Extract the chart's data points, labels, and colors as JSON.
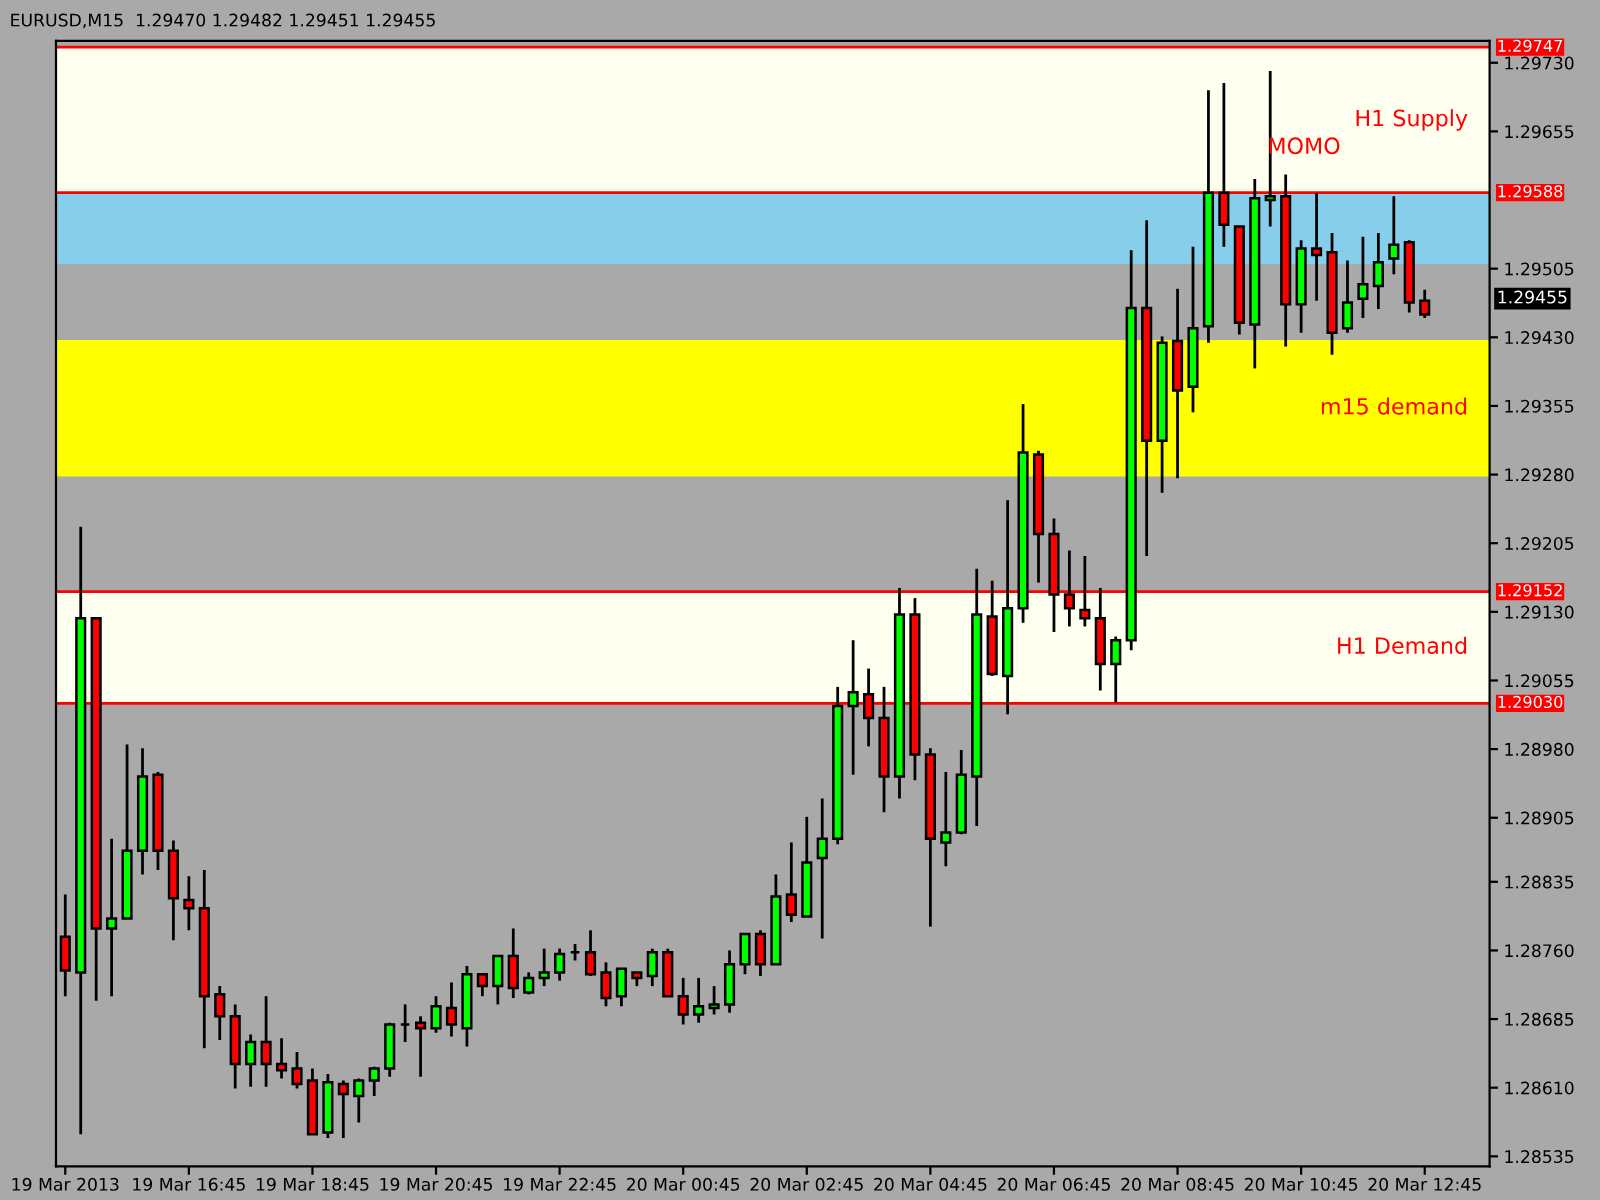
{
  "chart_data": {
    "type": "candlestick",
    "title": "EURUSD,M15  1.29470 1.29482 1.29451 1.29455",
    "categories": [
      "19 Mar 2013",
      null,
      null,
      null,
      null,
      null,
      null,
      null,
      "19 Mar 16:45",
      null,
      null,
      null,
      null,
      null,
      null,
      null,
      "19 Mar 18:45",
      null,
      null,
      null,
      null,
      null,
      null,
      null,
      "19 Mar 20:45",
      null,
      null,
      null,
      null,
      null,
      null,
      null,
      "19 Mar 22:45",
      null,
      null,
      null,
      null,
      null,
      null,
      null,
      "20 Mar 00:45",
      null,
      null,
      null,
      null,
      null,
      null,
      null,
      "20 Mar 02:45",
      null,
      null,
      null,
      null,
      null,
      null,
      null,
      "20 Mar 04:45",
      null,
      null,
      null,
      null,
      null,
      null,
      null,
      "20 Mar 06:45",
      null,
      null,
      null,
      null,
      null,
      null,
      null,
      "20 Mar 08:45",
      null,
      null,
      null,
      null,
      null,
      null,
      null,
      "20 Mar 10:45",
      null,
      null,
      null,
      null,
      null,
      null,
      null,
      "20 Mar 12:45"
    ],
    "ohlc": [
      [
        1.28775,
        1.28821,
        1.2871,
        1.28738
      ],
      [
        1.28736,
        1.29223,
        1.28559,
        1.29123
      ],
      [
        1.29123,
        1.29123,
        1.28705,
        1.28784
      ],
      [
        1.28784,
        1.28882,
        1.2871,
        1.28795
      ],
      [
        1.28795,
        1.28985,
        1.28795,
        1.28869
      ],
      [
        1.28869,
        1.28981,
        1.28843,
        1.2895
      ],
      [
        1.28952,
        1.28955,
        1.28848,
        1.28869
      ],
      [
        1.28869,
        1.2888,
        1.28771,
        1.28817
      ],
      [
        1.28815,
        1.28841,
        1.28782,
        1.28806
      ],
      [
        1.28806,
        1.28848,
        1.28653,
        1.2871
      ],
      [
        1.28712,
        1.28721,
        1.28662,
        1.28688
      ],
      [
        1.28688,
        1.28701,
        1.28609,
        1.28636
      ],
      [
        1.28636,
        1.28668,
        1.28611,
        1.2866
      ],
      [
        1.2866,
        1.2871,
        1.28611,
        1.28636
      ],
      [
        1.28636,
        1.28664,
        1.2862,
        1.28629
      ],
      [
        1.28631,
        1.28649,
        1.28609,
        1.28614
      ],
      [
        1.28618,
        1.28631,
        1.28559,
        1.28559
      ],
      [
        1.28561,
        1.28625,
        1.28555,
        1.28616
      ],
      [
        1.28614,
        1.28618,
        1.28555,
        1.28603
      ],
      [
        1.28601,
        1.2862,
        1.28572,
        1.28618
      ],
      [
        1.28618,
        1.28633,
        1.28601,
        1.28631
      ],
      [
        1.28631,
        1.28681,
        1.28622,
        1.28679
      ],
      [
        1.28679,
        1.28701,
        1.2866,
        1.28679
      ],
      [
        1.28681,
        1.28688,
        1.28622,
        1.28675
      ],
      [
        1.28675,
        1.2871,
        1.2867,
        1.28699
      ],
      [
        1.28697,
        1.28725,
        1.28666,
        1.28679
      ],
      [
        1.28675,
        1.28743,
        1.28655,
        1.28734
      ],
      [
        1.28734,
        1.28734,
        1.2871,
        1.28721
      ],
      [
        1.28721,
        1.28754,
        1.28701,
        1.28754
      ],
      [
        1.28754,
        1.28784,
        1.28708,
        1.28719
      ],
      [
        1.28714,
        1.28736,
        1.28712,
        1.2873
      ],
      [
        1.2873,
        1.28762,
        1.28721,
        1.28736
      ],
      [
        1.28736,
        1.28762,
        1.28727,
        1.28756
      ],
      [
        1.28758,
        1.28767,
        1.28749,
        1.28758
      ],
      [
        1.28758,
        1.28782,
        1.28732,
        1.28734
      ],
      [
        1.28736,
        1.28747,
        1.28699,
        1.28708
      ],
      [
        1.2871,
        1.2874,
        1.28699,
        1.2874
      ],
      [
        1.28736,
        1.28736,
        1.28721,
        1.2873
      ],
      [
        1.28732,
        1.28762,
        1.28721,
        1.28758
      ],
      [
        1.28758,
        1.28762,
        1.2871,
        1.2871
      ],
      [
        1.2871,
        1.2873,
        1.28679,
        1.2869
      ],
      [
        1.2869,
        1.2873,
        1.28681,
        1.28699
      ],
      [
        1.28697,
        1.28721,
        1.2869,
        1.28701
      ],
      [
        1.28701,
        1.2876,
        1.28692,
        1.28745
      ],
      [
        1.28745,
        1.28778,
        1.28734,
        1.28778
      ],
      [
        1.28778,
        1.28782,
        1.28732,
        1.28745
      ],
      [
        1.28745,
        1.28843,
        1.28745,
        1.28819
      ],
      [
        1.28821,
        1.28878,
        1.28791,
        1.28799
      ],
      [
        1.28797,
        1.28906,
        1.28797,
        1.28856
      ],
      [
        1.28861,
        1.28926,
        1.28773,
        1.28882
      ],
      [
        1.28882,
        1.29048,
        1.28876,
        1.29027
      ],
      [
        1.29027,
        1.29099,
        1.28952,
        1.29042
      ],
      [
        1.2904,
        1.29068,
        1.28983,
        1.29014
      ],
      [
        1.29014,
        1.29048,
        1.28911,
        1.2895
      ],
      [
        1.2895,
        1.29156,
        1.28926,
        1.29127
      ],
      [
        1.29127,
        1.29145,
        1.28946,
        1.28974
      ],
      [
        1.28974,
        1.28981,
        1.28786,
        1.28882
      ],
      [
        1.28878,
        1.28955,
        1.28852,
        1.28889
      ],
      [
        1.28889,
        1.28979,
        1.28887,
        1.28952
      ],
      [
        1.2895,
        1.29177,
        1.28896,
        1.29127
      ],
      [
        1.29125,
        1.29164,
        1.2906,
        1.29062
      ],
      [
        1.2906,
        1.29252,
        1.29018,
        1.29134
      ],
      [
        1.29134,
        1.29357,
        1.29118,
        1.29304
      ],
      [
        1.29302,
        1.29306,
        1.29162,
        1.29215
      ],
      [
        1.29215,
        1.29232,
        1.29108,
        1.29149
      ],
      [
        1.29149,
        1.29197,
        1.29114,
        1.29134
      ],
      [
        1.29132,
        1.29191,
        1.29114,
        1.29123
      ],
      [
        1.29123,
        1.29156,
        1.29044,
        1.29073
      ],
      [
        1.29073,
        1.29103,
        1.29031,
        1.29099
      ],
      [
        1.29099,
        1.29525,
        1.29088,
        1.29462
      ],
      [
        1.29462,
        1.29558,
        1.29191,
        1.29317
      ],
      [
        1.29317,
        1.29431,
        1.2926,
        1.29424
      ],
      [
        1.29426,
        1.29483,
        1.29276,
        1.29372
      ],
      [
        1.29376,
        1.29529,
        1.29348,
        1.2944
      ],
      [
        1.29442,
        1.297,
        1.29424,
        1.29588
      ],
      [
        1.29588,
        1.29708,
        1.29529,
        1.29553
      ],
      [
        1.29551,
        1.29551,
        1.29433,
        1.29446
      ],
      [
        1.29444,
        1.29603,
        1.29396,
        1.29582
      ],
      [
        1.2958,
        1.29721,
        1.29551,
        1.29584
      ],
      [
        1.29584,
        1.29608,
        1.2942,
        1.29466
      ],
      [
        1.29466,
        1.29536,
        1.29435,
        1.29527
      ],
      [
        1.29527,
        1.29588,
        1.2947,
        1.2952
      ],
      [
        1.29523,
        1.29544,
        1.29411,
        1.29435
      ],
      [
        1.2944,
        1.29514,
        1.29435,
        1.29468
      ],
      [
        1.29472,
        1.2954,
        1.29451,
        1.29488
      ],
      [
        1.29486,
        1.29544,
        1.29461,
        1.29512
      ],
      [
        1.29516,
        1.29584,
        1.29499,
        1.29531
      ],
      [
        1.29534,
        1.29536,
        1.29457,
        1.29468
      ],
      [
        1.2947,
        1.29482,
        1.29451,
        1.29455
      ]
    ],
    "colors": [
      "#ff0000",
      "#00ff00",
      "#ff0000",
      "#00ff00",
      "#00ff00",
      "#00ff00",
      "#ff0000",
      "#ff0000",
      "#ff0000",
      "#ff0000",
      "#ff0000",
      "#ff0000",
      "#00ff00",
      "#ff0000",
      "#ff0000",
      "#ff0000",
      "#ff0000",
      "#00ff00",
      "#ff0000",
      "#00ff00",
      "#00ff00",
      "#00ff00",
      "#000000",
      "#ff0000",
      "#00ff00",
      "#ff0000",
      "#00ff00",
      "#ff0000",
      "#00ff00",
      "#ff0000",
      "#00ff00",
      "#00ff00",
      "#00ff00",
      "#000000",
      "#ff0000",
      "#ff0000",
      "#00ff00",
      "#ff0000",
      "#00ff00",
      "#ff0000",
      "#ff0000",
      "#00ff00",
      "#00ff00",
      "#00ff00",
      "#00ff00",
      "#ff0000",
      "#00ff00",
      "#ff0000",
      "#00ff00",
      "#00ff00",
      "#00ff00",
      "#00ff00",
      "#ff0000",
      "#ff0000",
      "#00ff00",
      "#ff0000",
      "#ff0000",
      "#00ff00",
      "#00ff00",
      "#00ff00",
      "#ff0000",
      "#00ff00",
      "#00ff00",
      "#ff0000",
      "#ff0000",
      "#ff0000",
      "#ff0000",
      "#ff0000",
      "#00ff00",
      "#00ff00",
      "#ff0000",
      "#00ff00",
      "#ff0000",
      "#00ff00",
      "#00ff00",
      "#ff0000",
      "#ff0000",
      "#00ff00",
      "#00ff00",
      "#ff0000",
      "#00ff00",
      "#ff0000",
      "#ff0000",
      "#00ff00",
      "#00ff00",
      "#00ff00",
      "#00ff00",
      "#ff0000",
      "#ff0000"
    ],
    "ylim": [
      1.28524,
      1.29754
    ],
    "yticks": [
      {
        "value": 1.2973,
        "label": "1.29730"
      },
      {
        "value": 1.29655,
        "label": "1.29655"
      },
      {
        "value": 1.29505,
        "label": "1.29505"
      },
      {
        "value": 1.2943,
        "label": "1.29430"
      },
      {
        "value": 1.29355,
        "label": "1.29355"
      },
      {
        "value": 1.2928,
        "label": "1.29280"
      },
      {
        "value": 1.29205,
        "label": "1.29205"
      },
      {
        "value": 1.2913,
        "label": "1.29130"
      },
      {
        "value": 1.29055,
        "label": "1.29055"
      },
      {
        "value": 1.2898,
        "label": "1.28980"
      },
      {
        "value": 1.28905,
        "label": "1.28905"
      },
      {
        "value": 1.28835,
        "label": "1.28835"
      },
      {
        "value": 1.2876,
        "label": "1.28760"
      },
      {
        "value": 1.28685,
        "label": "1.28685"
      },
      {
        "value": 1.2861,
        "label": "1.28610"
      },
      {
        "value": 1.28535,
        "label": "1.28535"
      }
    ],
    "bands": [
      {
        "axis": "y",
        "from": 1.29588,
        "to": 1.29747,
        "label": "H1 Supply",
        "color": "#fffff0"
      },
      {
        "axis": "y",
        "from": 1.2951,
        "to": 1.29588,
        "color": "#87ceeb"
      },
      {
        "axis": "y",
        "from": 1.29278,
        "to": 1.29427,
        "label": "m15 demand",
        "color": "#ffff00"
      },
      {
        "axis": "y",
        "from": 1.2903,
        "to": 1.29152,
        "label": "H1 Demand",
        "color": "#fffff0"
      }
    ],
    "ref_lines": [
      {
        "axis": "y",
        "value": 1.29747,
        "label": "1.29747",
        "color": "#ff0000"
      },
      {
        "axis": "y",
        "value": 1.29588,
        "label": "1.29588",
        "color": "#ff0000"
      },
      {
        "axis": "y",
        "value": 1.29152,
        "label": "1.29152",
        "color": "#ff0000"
      },
      {
        "axis": "y",
        "value": 1.2903,
        "label": "1.29030",
        "color": "#ff0000"
      }
    ],
    "annotations": [
      "MOMO",
      "1.29455"
    ],
    "grid": false,
    "legend": false
  }
}
